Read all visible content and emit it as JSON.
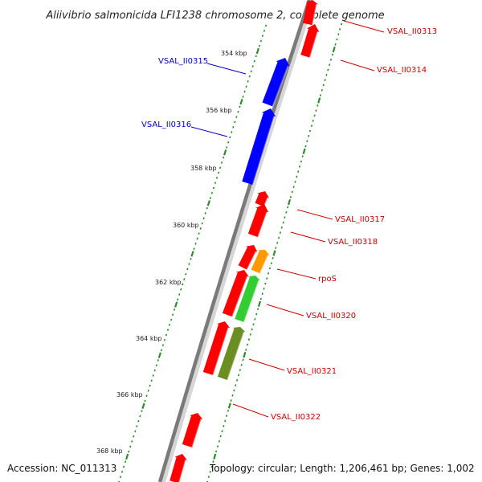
{
  "title": "Aliivibrio salmonicida LFI1238 chromosome 2, complete genome",
  "footer": {
    "accession": "Accession: NC_011313",
    "summary": "Topology: circular; Length: 1,206,461 bp; Genes: 1,002"
  },
  "colors": {
    "background": "#ffffff",
    "backbone": "#808080",
    "tick": "#2e8b2e",
    "minor_dot": "#1f8a1f",
    "red_gene": "#ff0000",
    "blue_gene": "#0000ff",
    "orange_gene": "#ff9900",
    "green_gene": "#33cc33",
    "olive_gene": "#6b8e23",
    "red_label": "#cc0000",
    "blue_label": "#0000cc"
  },
  "scale_labels": [
    "354 kbp",
    "356 kbp",
    "358 kbp",
    "360 kbp",
    "362 kbp",
    "364 kbp",
    "366 kbp",
    "368 kbp"
  ],
  "features": [
    {
      "label": "VSAL_II0313",
      "color": "red",
      "label_color": "red"
    },
    {
      "label": "VSAL_II0314",
      "color": "red",
      "label_color": "red"
    },
    {
      "label": "VSAL_II0315",
      "color": "blue",
      "label_color": "blue"
    },
    {
      "label": "VSAL_II0316",
      "color": "blue",
      "label_color": "blue"
    },
    {
      "label": "VSAL_II0317",
      "color": "red",
      "label_color": "red"
    },
    {
      "label": "VSAL_II0318",
      "color": "red",
      "label_color": "red"
    },
    {
      "label": "rpoS",
      "color": "orange",
      "label_color": "red"
    },
    {
      "label": "VSAL_II0320",
      "color": "green",
      "label_color": "red"
    },
    {
      "label": "VSAL_II0321",
      "color": "olive",
      "label_color": "red"
    },
    {
      "label": "VSAL_II0322",
      "color": "red",
      "label_color": "red"
    }
  ]
}
